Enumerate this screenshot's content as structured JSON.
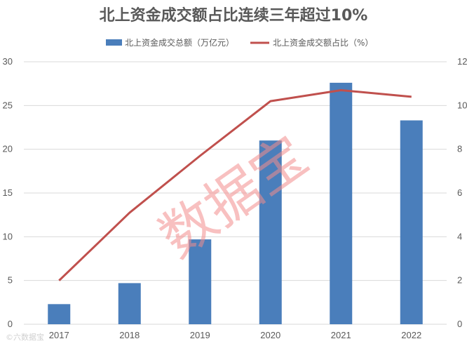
{
  "chart_data": {
    "type": "bar",
    "title": "北上资金成交额占比连续三年超过10%",
    "categories": [
      "2017",
      "2018",
      "2019",
      "2020",
      "2021",
      "2022"
    ],
    "series": [
      {
        "name": "北上资金成交总额（万亿元）",
        "type": "bar",
        "axis": "left",
        "values": [
          2.3,
          4.7,
          9.7,
          21.0,
          27.6,
          23.3
        ]
      },
      {
        "name": "北上资金成交额占比（%）",
        "type": "line",
        "axis": "right",
        "values": [
          2.0,
          5.1,
          7.7,
          10.2,
          10.7,
          10.4
        ]
      }
    ],
    "y_left": {
      "ylim": [
        0,
        30
      ],
      "ticks": [
        "0",
        "5",
        "10",
        "15",
        "20",
        "25",
        "30"
      ]
    },
    "y_right": {
      "ylim": [
        0,
        12
      ],
      "ticks": [
        "0",
        "2",
        "4",
        "6",
        "8",
        "10",
        "12"
      ]
    },
    "legend_position": "top-center",
    "grid": true,
    "colors": {
      "bar": "#4a7ebb",
      "line": "#c0504d",
      "grid": "#d9d9d9",
      "text": "#595959"
    }
  },
  "watermark": "数据宝",
  "credit": "©六数据宝"
}
